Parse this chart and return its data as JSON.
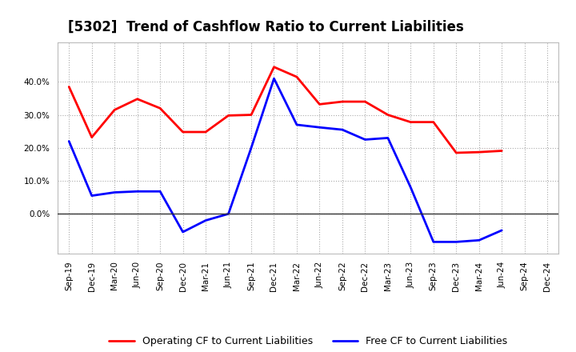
{
  "title": "[5302]  Trend of Cashflow Ratio to Current Liabilities",
  "x_labels": [
    "Sep-19",
    "Dec-19",
    "Mar-20",
    "Jun-20",
    "Sep-20",
    "Dec-20",
    "Mar-21",
    "Jun-21",
    "Sep-21",
    "Dec-21",
    "Mar-22",
    "Jun-22",
    "Sep-22",
    "Dec-22",
    "Mar-23",
    "Jun-23",
    "Sep-23",
    "Dec-23",
    "Mar-24",
    "Jun-24",
    "Sep-24",
    "Dec-24"
  ],
  "operating_cf": [
    0.385,
    0.232,
    0.315,
    0.348,
    0.32,
    0.248,
    0.248,
    0.298,
    0.3,
    0.445,
    0.415,
    0.332,
    0.34,
    0.34,
    0.3,
    0.278,
    0.278,
    0.185,
    0.187,
    0.191,
    null,
    null
  ],
  "free_cf": [
    0.22,
    0.055,
    0.065,
    0.068,
    0.068,
    -0.055,
    -0.055,
    0.0,
    0.2,
    0.41,
    0.27,
    0.262,
    0.255,
    0.225,
    0.225,
    0.08,
    -0.085,
    -0.085,
    -0.085,
    -0.05,
    null,
    null
  ],
  "operating_color": "#FF0000",
  "free_color": "#0000FF",
  "ylim": [
    -0.12,
    0.52
  ],
  "yticks": [
    0.0,
    0.1,
    0.2,
    0.3,
    0.4
  ],
  "legend_labels": [
    "Operating CF to Current Liabilities",
    "Free CF to Current Liabilities"
  ],
  "title_fontsize": 12,
  "line_width": 2.0,
  "tick_fontsize": 7.5,
  "legend_fontsize": 9
}
